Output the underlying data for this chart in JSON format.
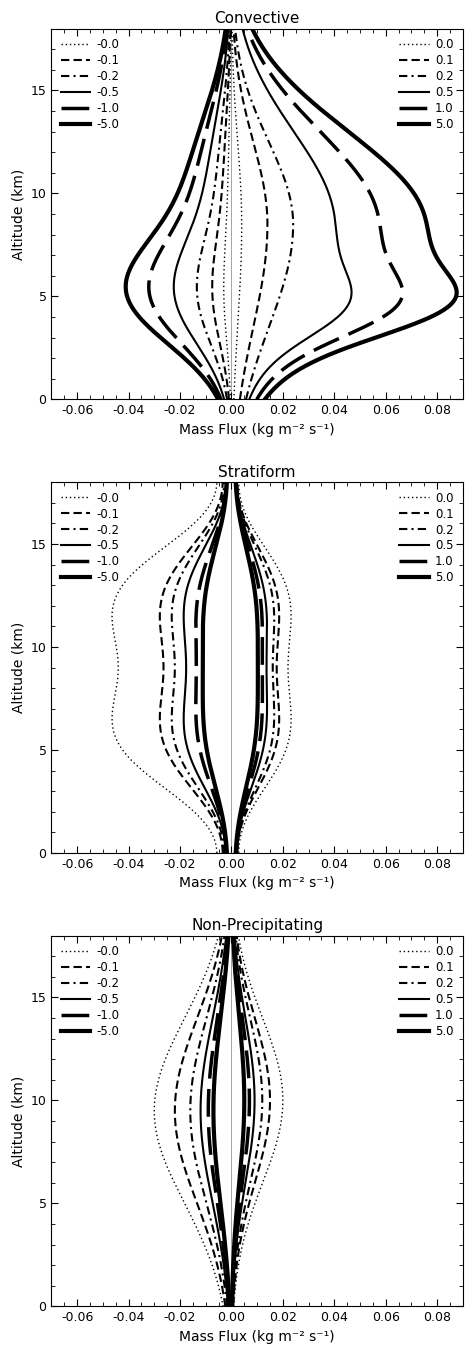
{
  "titles": [
    "Convective",
    "Stratiform",
    "Non-Precipitating"
  ],
  "xlabel": "Mass Flux (kg m⁻² s⁻¹)",
  "ylabel": "Altitude (km)",
  "xlim": [
    -0.07,
    0.09
  ],
  "ylim": [
    0,
    18
  ],
  "xticks": [
    -0.06,
    -0.04,
    -0.02,
    0.0,
    0.02,
    0.04,
    0.06,
    0.08
  ],
  "yticks": [
    0,
    5,
    10,
    15
  ],
  "legend_labels_neg": [
    "-0.0",
    "-0.1",
    "-0.2",
    "-0.5",
    "-1.0",
    "-5.0"
  ],
  "legend_labels_pos": [
    "0.0",
    "0.1",
    "0.2",
    "0.5",
    "1.0",
    "5.0"
  ],
  "background_color": "#ffffff"
}
